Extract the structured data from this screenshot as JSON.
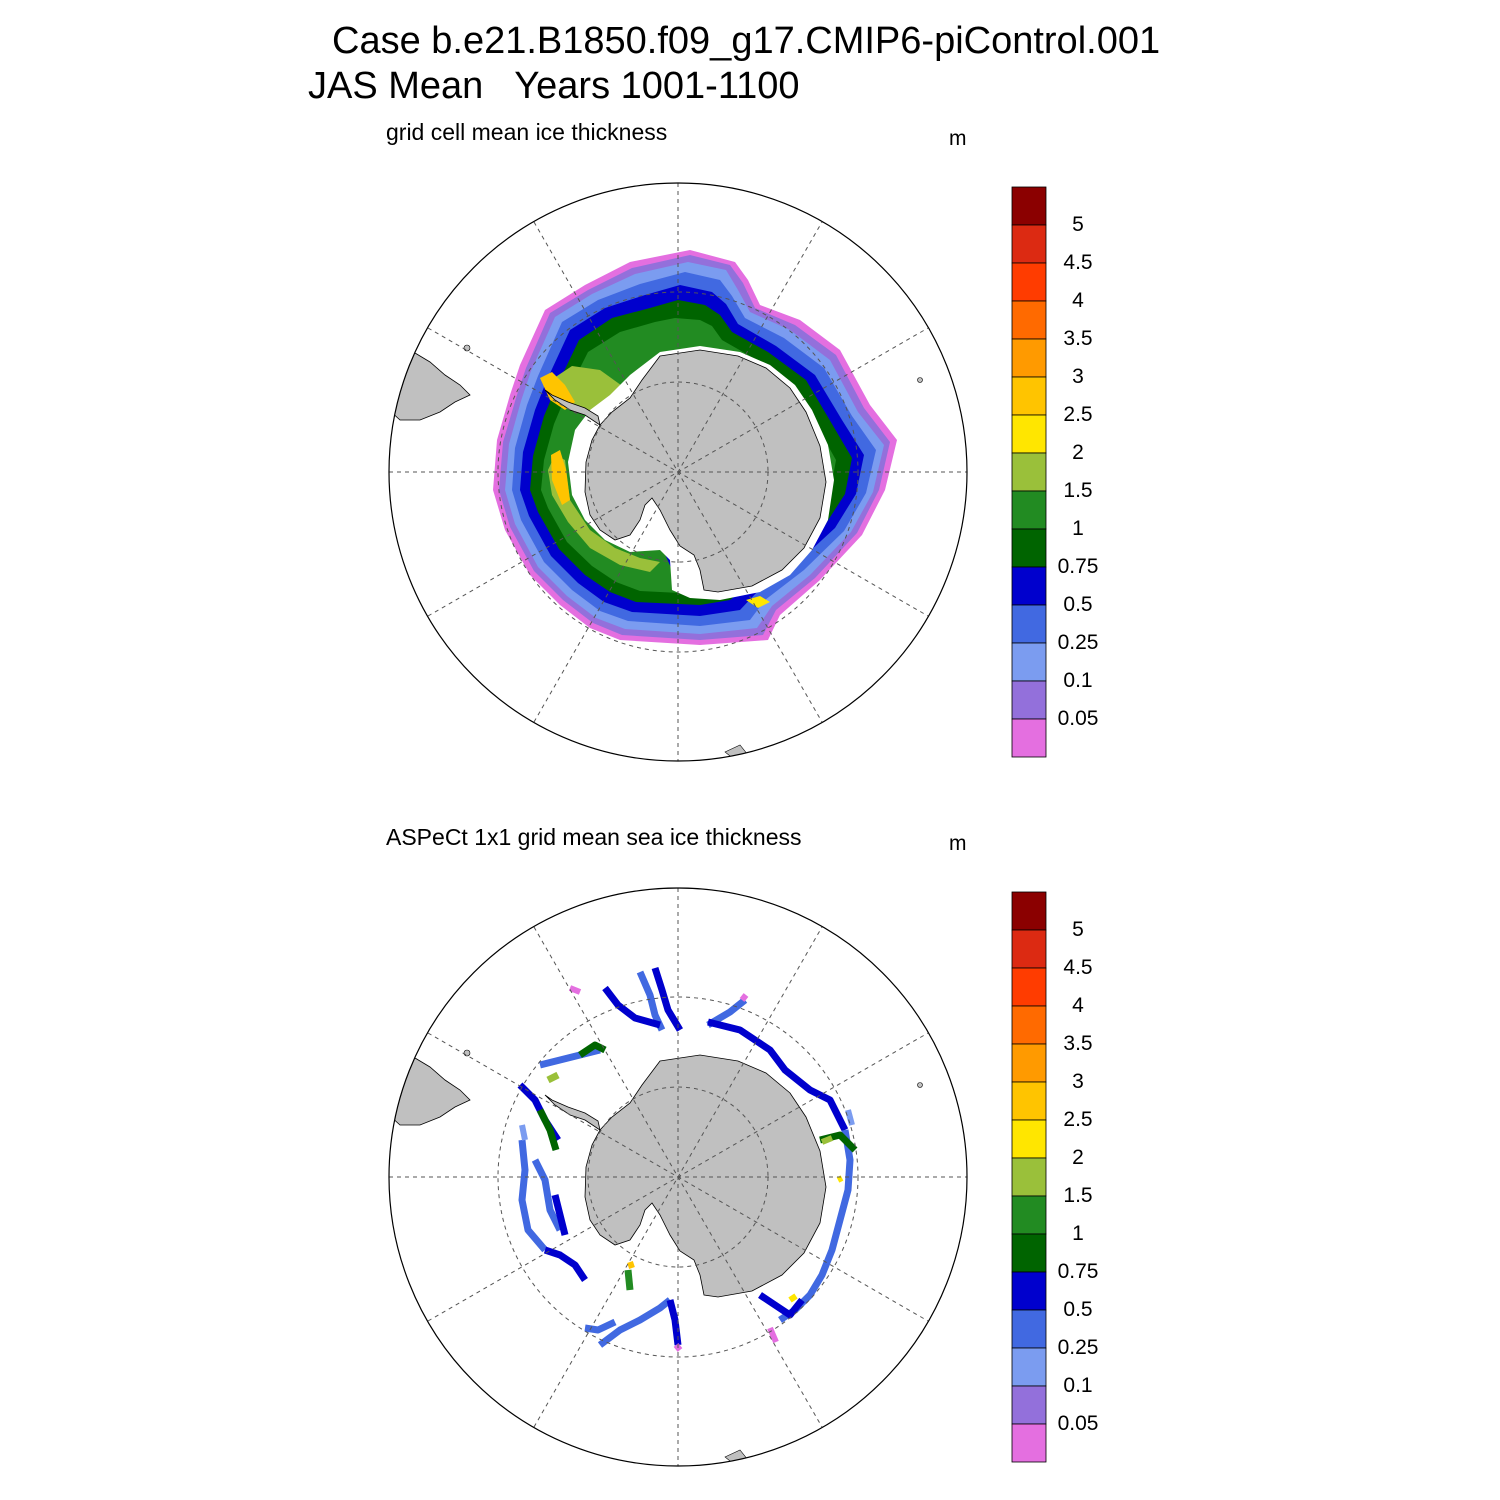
{
  "header": {
    "title_line1": "Case b.e21.B1850.f09_g17.CMIP6-piControl.001",
    "title_line2": "JAS Mean   Years 1001-1100"
  },
  "panels": [
    {
      "subtitle": "grid cell mean ice thickness",
      "units": "m"
    },
    {
      "subtitle": "ASPeCt 1x1 grid mean sea ice thickness",
      "units": "m"
    }
  ],
  "colorbar": {
    "labels": [
      "5",
      "4.5",
      "4",
      "3.5",
      "3",
      "2.5",
      "2",
      "1.5",
      "1",
      "0.75",
      "0.5",
      "0.25",
      "0.1",
      "0.05"
    ],
    "colors_top_to_bottom": [
      "#8b0000",
      "#dc2a12",
      "#ff3c00",
      "#ff6a00",
      "#ff9a00",
      "#ffc400",
      "#ffe600",
      "#9ac03a",
      "#228b22",
      "#006400",
      "#0000cd",
      "#4169e1",
      "#7b9cf0",
      "#9370db",
      "#e46fe0"
    ]
  },
  "map_style": {
    "land_color": "#c0c0c0",
    "ocean_color": "#ffffff",
    "grid_style": "dashed"
  }
}
